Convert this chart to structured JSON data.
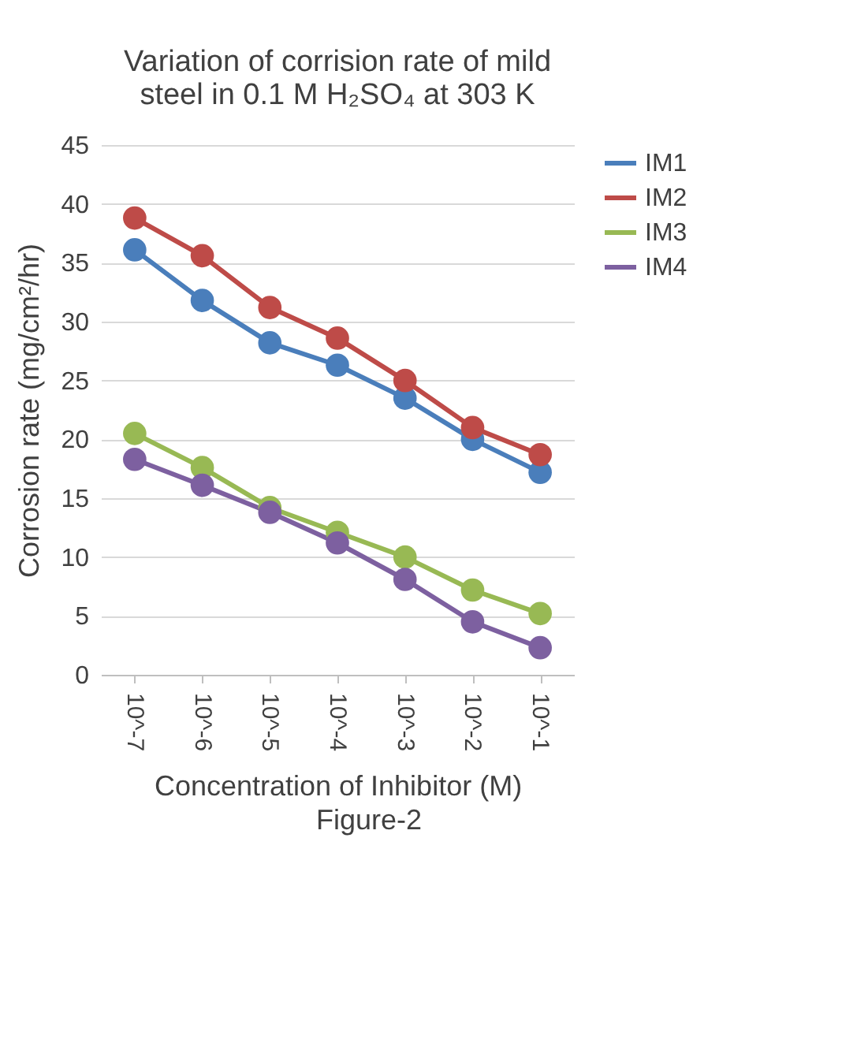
{
  "chart_data": {
    "type": "line",
    "title": [
      "Variation of corrision rate of mild",
      "steel in 0.1 M H₂SO₄ at 303 K"
    ],
    "xlabel": "Concentration of Inhibitor (M)",
    "ylabel": "Corrosion rate (mg/cm²/hr)",
    "annotations": [
      "Figure-2"
    ],
    "categories": [
      "10^-7",
      "10^-6",
      "10^-5",
      "10^-4",
      "10^-3",
      "10^-2",
      "10^-1"
    ],
    "series": [
      {
        "name": "IM1",
        "color": "#4a7ebb",
        "values": [
          36.1,
          31.8,
          28.2,
          26.3,
          23.5,
          20.0,
          17.2
        ]
      },
      {
        "name": "IM2",
        "color": "#be4b48",
        "values": [
          38.8,
          35.6,
          31.2,
          28.6,
          25.0,
          21.0,
          18.7
        ]
      },
      {
        "name": "IM3",
        "color": "#98b954",
        "values": [
          20.5,
          17.6,
          14.2,
          12.1,
          10.0,
          7.2,
          5.2
        ]
      },
      {
        "name": "IM4",
        "color": "#7d60a0",
        "values": [
          18.3,
          16.1,
          13.8,
          11.2,
          8.1,
          4.5,
          2.3
        ]
      }
    ],
    "ylim": [
      0,
      45
    ],
    "yticks": [
      0,
      5,
      10,
      15,
      20,
      25,
      30,
      35,
      40,
      45
    ],
    "grid": "y",
    "legend": "right",
    "marker": "circle",
    "line_style": "solid"
  }
}
